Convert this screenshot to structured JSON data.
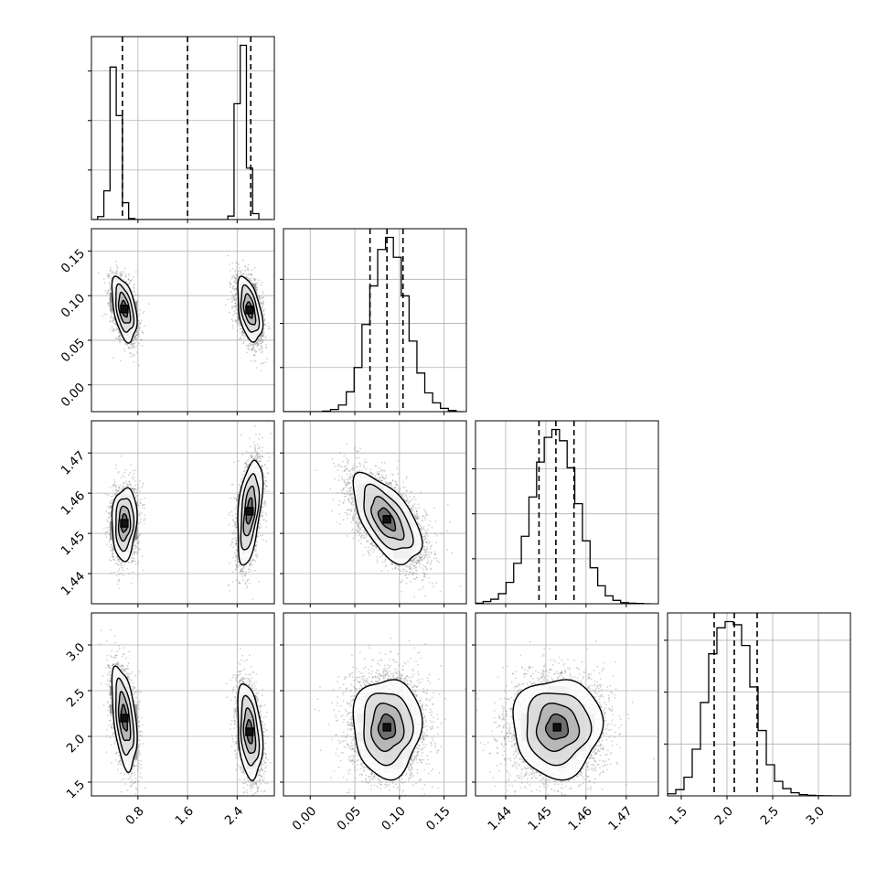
{
  "chart_data": {
    "type": "scatter",
    "subtype": "corner_plot",
    "title": "",
    "parameters": [
      "",
      "",
      "",
      ""
    ],
    "grid": true,
    "colors": {
      "ink": "#000000",
      "grid": "#b0b0b0",
      "points": "#7f7f7f"
    },
    "axes": [
      {
        "range": [
          0.05,
          3.0
        ],
        "ticks": [
          0.8,
          1.6,
          2.4
        ],
        "tick_labels": [
          "0.8",
          "1.6",
          "2.4"
        ]
      },
      {
        "range": [
          -0.03,
          0.175
        ],
        "ticks": [
          0.0,
          0.05,
          0.1,
          0.15
        ],
        "tick_labels": [
          "0.00",
          "0.05",
          "0.10",
          "0.15"
        ]
      },
      {
        "range": [
          1.4325,
          1.478
        ],
        "ticks": [
          1.44,
          1.45,
          1.46,
          1.47
        ],
        "tick_labels": [
          "1.44",
          "1.45",
          "1.46",
          "1.47"
        ]
      },
      {
        "range": [
          1.35,
          3.35
        ],
        "ticks": [
          1.5,
          2.0,
          2.5,
          3.0
        ],
        "tick_labels": [
          "1.5",
          "2.0",
          "2.5",
          "3.0"
        ]
      }
    ],
    "diagonal": [
      {
        "param": 0,
        "edges": [
          0.05,
          0.15,
          0.25,
          0.35,
          0.45,
          0.55,
          0.65,
          0.75,
          0.85,
          0.95,
          1.05,
          1.15,
          1.25,
          1.35,
          1.45,
          1.55,
          1.65,
          1.75,
          1.85,
          1.95,
          2.05,
          2.15,
          2.25,
          2.35,
          2.45,
          2.55,
          2.65,
          2.75,
          2.85,
          2.95
        ],
        "counts": [
          0,
          30,
          290,
          1540,
          1050,
          170,
          10,
          0,
          0,
          0,
          0,
          0,
          0,
          0,
          0,
          0,
          0,
          0,
          0,
          0,
          0,
          0,
          35,
          1170,
          1760,
          520,
          60,
          0,
          0
        ],
        "quantiles": [
          0.55,
          1.6,
          2.62
        ],
        "yticks": [
          500,
          1000,
          1500
        ]
      },
      {
        "param": 1,
        "edges": [
          -0.03,
          -0.0212,
          -0.0124,
          -0.0036,
          0.0052,
          0.014,
          0.0228,
          0.0316,
          0.0404,
          0.0492,
          0.058,
          0.0668,
          0.0756,
          0.0844,
          0.0932,
          0.102,
          0.1108,
          0.1196,
          0.1284,
          0.1372,
          0.146,
          0.1548,
          0.1636,
          0.1724
        ],
        "counts": [
          0,
          0,
          0,
          0,
          0,
          5,
          20,
          60,
          180,
          400,
          790,
          1140,
          1470,
          1580,
          1400,
          1050,
          640,
          350,
          170,
          80,
          30,
          10,
          0
        ],
        "quantiles": [
          0.067,
          0.086,
          0.104
        ],
        "yticks": [
          400,
          800,
          1200
        ]
      },
      {
        "param": 2,
        "edges": [
          1.4325,
          1.4344,
          1.4363,
          1.4382,
          1.4401,
          1.442,
          1.4439,
          1.4458,
          1.4477,
          1.4496,
          1.4515,
          1.4534,
          1.4553,
          1.4572,
          1.4591,
          1.461,
          1.4629,
          1.4648,
          1.4667,
          1.4686,
          1.4705,
          1.4724,
          1.4743,
          1.4762
        ],
        "counts": [
          5,
          20,
          40,
          90,
          190,
          360,
          600,
          950,
          1260,
          1480,
          1550,
          1450,
          1210,
          890,
          560,
          320,
          160,
          70,
          30,
          10,
          5,
          3,
          0
        ],
        "quantiles": [
          1.4483,
          1.4525,
          1.457
        ],
        "yticks": [
          400,
          800,
          1200
        ]
      },
      {
        "param": 3,
        "edges": [
          1.35,
          1.44,
          1.53,
          1.62,
          1.71,
          1.8,
          1.89,
          1.98,
          2.07,
          2.16,
          2.25,
          2.34,
          2.43,
          2.52,
          2.61,
          2.7,
          2.79,
          2.88,
          2.97,
          3.06,
          3.15,
          3.24,
          3.33
        ],
        "counts": [
          20,
          60,
          180,
          450,
          900,
          1370,
          1620,
          1680,
          1650,
          1450,
          1050,
          630,
          300,
          140,
          70,
          30,
          12,
          5,
          2,
          1,
          0,
          0
        ],
        "quantiles": [
          1.86,
          2.08,
          2.33
        ],
        "yticks": [
          500,
          1000,
          1500
        ]
      }
    ],
    "pairs": [
      {
        "x": 0,
        "y": 1,
        "modes": [
          {
            "cx": 0.58,
            "cy": 0.085,
            "sx": 0.1,
            "sy": 0.018,
            "rho": -0.45,
            "w": 0.48
          },
          {
            "cx": 2.6,
            "cy": 0.084,
            "sx": 0.1,
            "sy": 0.018,
            "rho": -0.45,
            "w": 0.52
          }
        ]
      },
      {
        "x": 0,
        "y": 2,
        "modes": [
          {
            "cx": 0.58,
            "cy": 1.4525,
            "sx": 0.1,
            "sy": 0.0045,
            "rho": 0.1,
            "w": 0.48
          },
          {
            "cx": 2.6,
            "cy": 1.4555,
            "sx": 0.1,
            "sy": 0.0065,
            "rho": 0.45,
            "w": 0.52
          }
        ]
      },
      {
        "x": 0,
        "y": 3,
        "modes": [
          {
            "cx": 0.58,
            "cy": 2.2,
            "sx": 0.1,
            "sy": 0.28,
            "rho": -0.45,
            "w": 0.48
          },
          {
            "cx": 2.6,
            "cy": 2.05,
            "sx": 0.1,
            "sy": 0.26,
            "rho": -0.3,
            "w": 0.52
          }
        ]
      },
      {
        "x": 1,
        "y": 2,
        "modes": [
          {
            "cx": 0.086,
            "cy": 1.4535,
            "sx": 0.019,
            "sy": 0.0055,
            "rho": -0.6,
            "w": 1
          }
        ]
      },
      {
        "x": 1,
        "y": 3,
        "modes": [
          {
            "cx": 0.086,
            "cy": 2.1,
            "sx": 0.019,
            "sy": 0.27,
            "rho": 0.0,
            "w": 1
          }
        ]
      },
      {
        "x": 2,
        "y": 3,
        "modes": [
          {
            "cx": 1.4528,
            "cy": 2.1,
            "sx": 0.0055,
            "sy": 0.27,
            "rho": 0.0,
            "w": 1
          }
        ]
      }
    ]
  }
}
